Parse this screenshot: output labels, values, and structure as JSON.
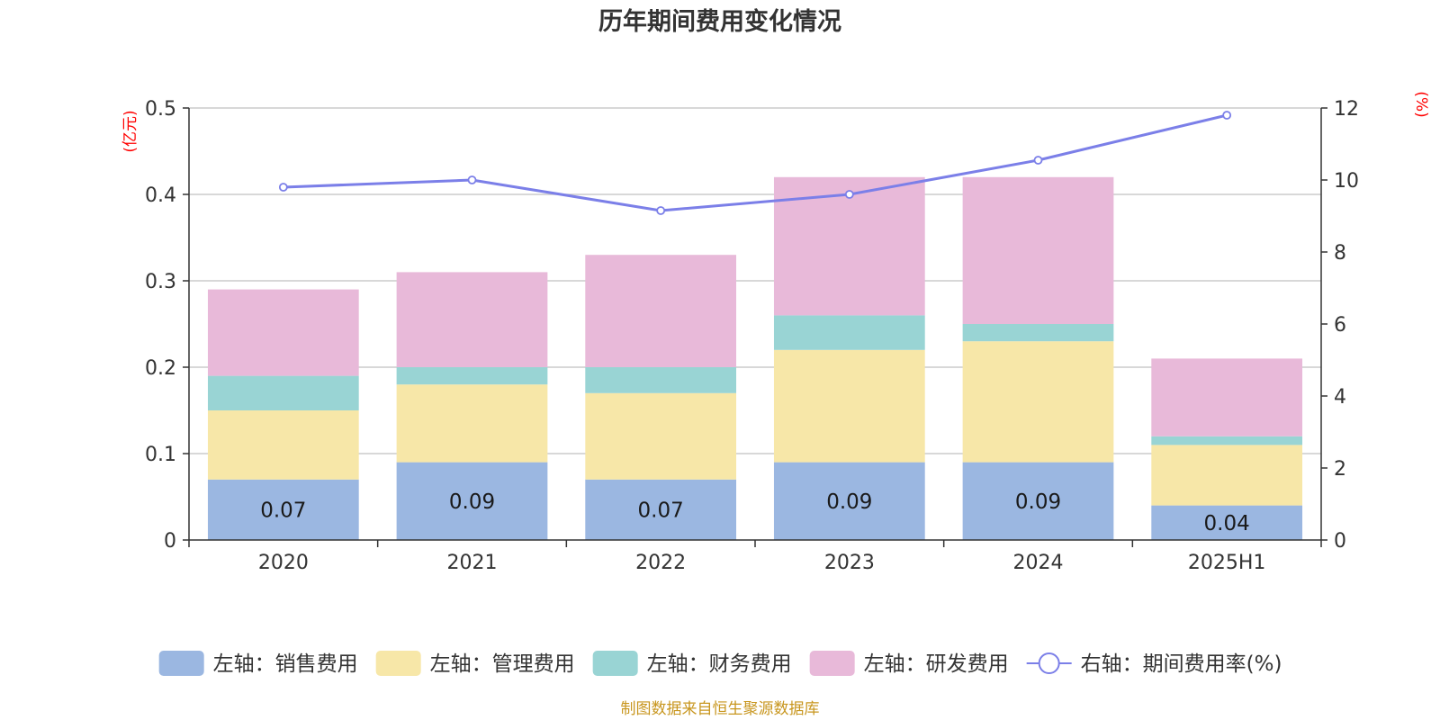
{
  "chart_data": {
    "type": "bar",
    "title": "历年期间费用变化情况",
    "categories": [
      "2020",
      "2021",
      "2022",
      "2023",
      "2024",
      "2025H1"
    ],
    "series": [
      {
        "name": "左轴：销售费用",
        "kind": "bar",
        "axis": "left",
        "color": "#9bb7e1",
        "values": [
          0.07,
          0.09,
          0.07,
          0.09,
          0.09,
          0.04
        ]
      },
      {
        "name": "左轴：管理费用",
        "kind": "bar",
        "axis": "left",
        "color": "#f7e7a8",
        "values": [
          0.08,
          0.09,
          0.1,
          0.13,
          0.14,
          0.07
        ]
      },
      {
        "name": "左轴：财务费用",
        "kind": "bar",
        "axis": "left",
        "color": "#99d4d4",
        "values": [
          0.04,
          0.02,
          0.03,
          0.04,
          0.02,
          0.01
        ]
      },
      {
        "name": "左轴：研发费用",
        "kind": "bar",
        "axis": "left",
        "color": "#e8b9d9",
        "values": [
          0.1,
          0.11,
          0.13,
          0.16,
          0.17,
          0.09
        ]
      },
      {
        "name": "右轴：期间费用率(%)",
        "kind": "line",
        "axis": "right",
        "color": "#7b7fe8",
        "values": [
          9.8,
          10.0,
          9.15,
          9.6,
          10.55,
          11.8
        ]
      }
    ],
    "data_labels": [
      "0.07",
      "0.09",
      "0.07",
      "0.09",
      "0.09",
      "0.04"
    ],
    "y_left": {
      "unit": "(亿元)",
      "ylim": [
        0,
        0.5
      ],
      "ticks": [
        "0",
        "0.1",
        "0.2",
        "0.3",
        "0.4",
        "0.5"
      ]
    },
    "y_right": {
      "unit": "(%)",
      "ylim": [
        0,
        12
      ],
      "ticks": [
        "0",
        "2",
        "4",
        "6",
        "8",
        "10",
        "12"
      ]
    },
    "grid": true,
    "legend_position": "bottom"
  },
  "source_note": "制图数据来自恒生聚源数据库"
}
